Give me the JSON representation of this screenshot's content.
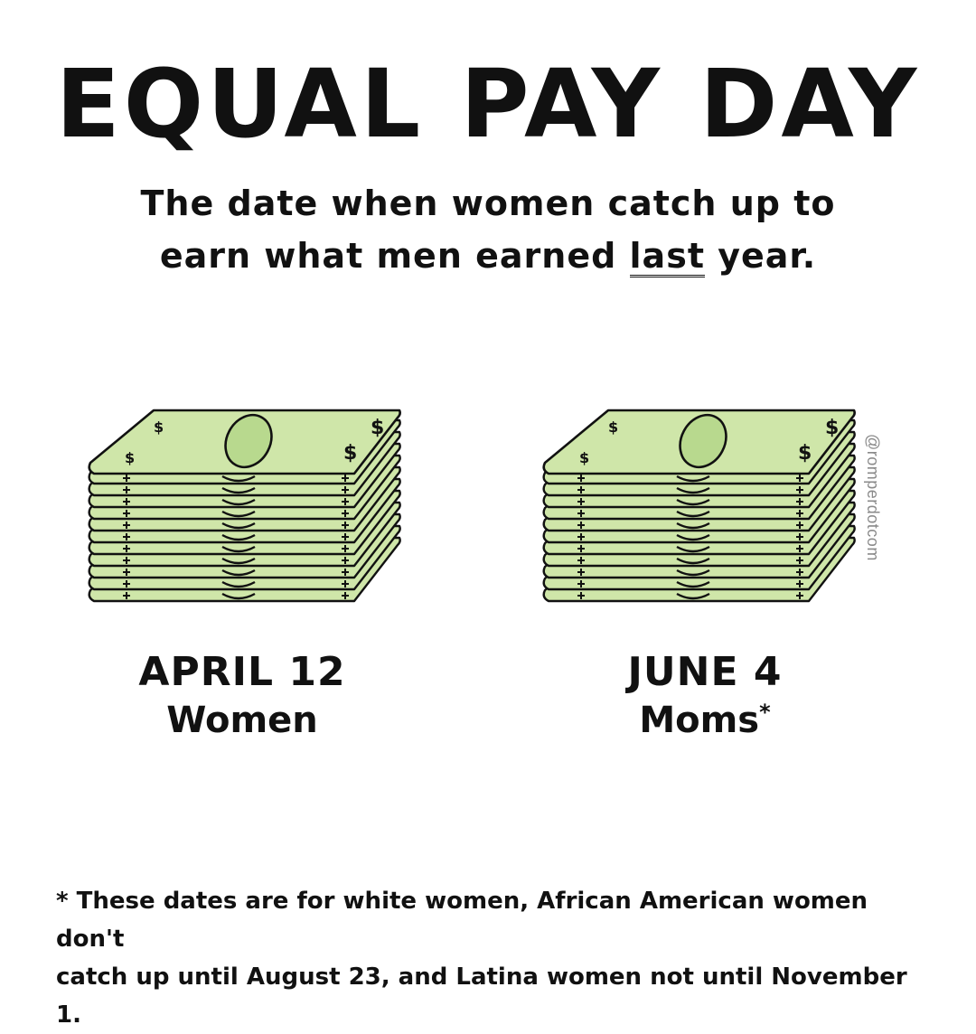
{
  "title": "EQUAL PAY DAY",
  "subtitle": {
    "line1": "The date when women catch up to",
    "line2_pre": "earn what men earned ",
    "line2_emph": "last",
    "line2_post": " year."
  },
  "left": {
    "date": "APRIL 12",
    "label": "Women",
    "icon": "money-stack-icon"
  },
  "right": {
    "date": "JUNE 4",
    "label": "Moms",
    "marker": "*",
    "icon": "money-stack-icon"
  },
  "handle": "@romperdotcom",
  "footnote": {
    "line1": "* These dates are for white women, African American women don't",
    "line2": "catch up until August 23, and Latina women not until November 1."
  },
  "colors": {
    "bill_fill": "#cfe6a9",
    "bill_oval": "#b8d98e",
    "ink": "#111111",
    "handle": "#8a8a8a"
  }
}
